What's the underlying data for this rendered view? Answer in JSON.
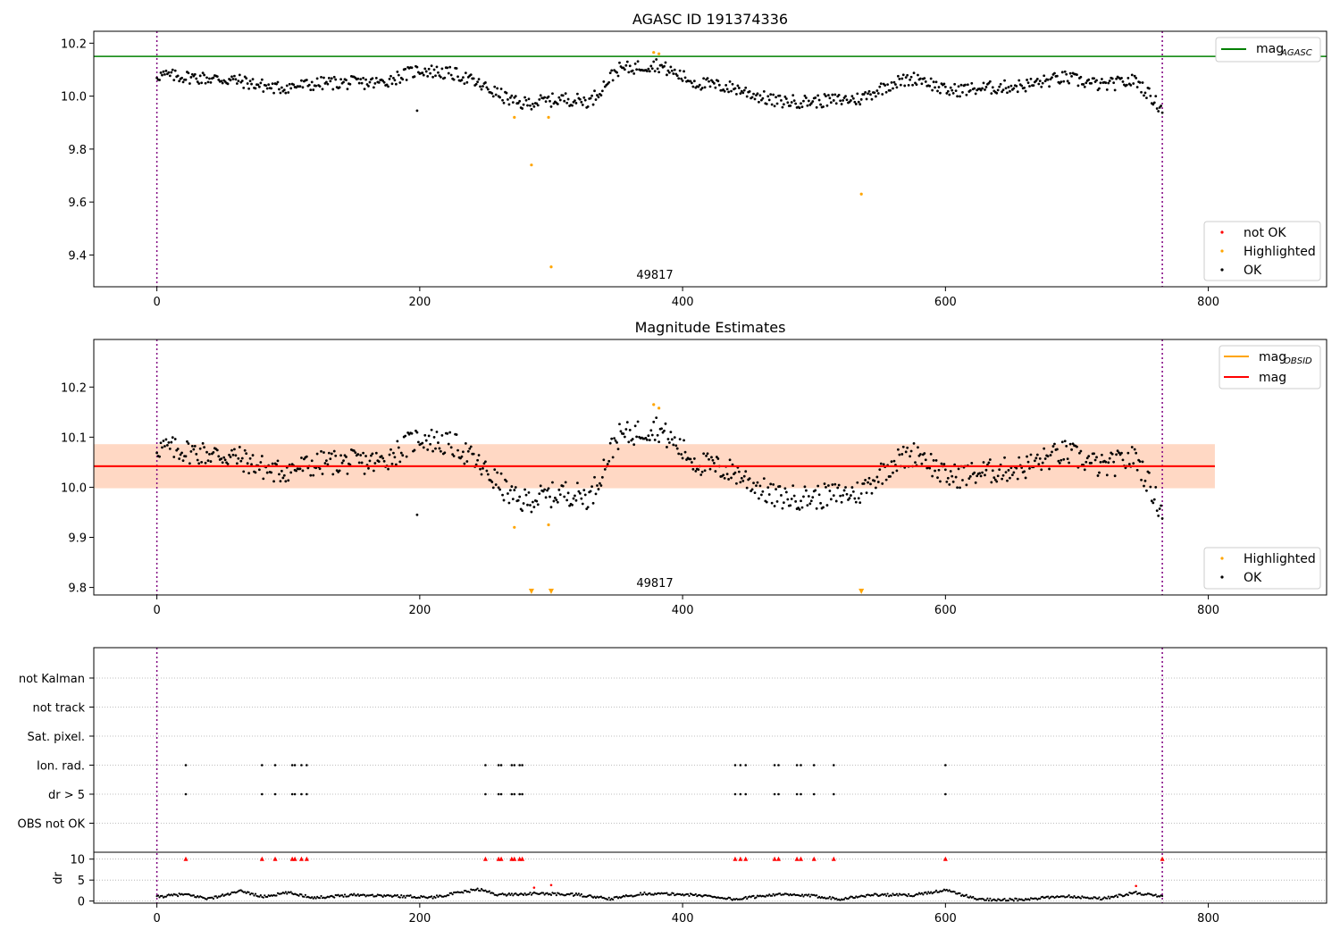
{
  "chart_data": [
    {
      "type": "scatter",
      "title": "AGASC ID 191374336",
      "xlim": [
        -48,
        890
      ],
      "ylim": [
        9.28,
        10.245
      ],
      "xticks": [
        0,
        200,
        400,
        600,
        800
      ],
      "yticks": [
        9.4,
        9.6,
        9.8,
        10.0,
        10.2
      ],
      "ytick_labels": [
        "9.4",
        "9.6",
        "9.8",
        "10.0",
        "10.2"
      ],
      "annotation": "49817",
      "annotation_x": 385,
      "obs_boundaries": [
        0,
        765
      ],
      "mag_agasc": 10.15,
      "legend_top": {
        "position": "top-right",
        "entries": [
          {
            "label": "mag",
            "sub": "AGASC",
            "color": "#008000",
            "kind": "line"
          }
        ]
      },
      "legend_bottom": {
        "position": "bottom-right",
        "entries": [
          {
            "label": "not OK",
            "color": "#ff0000",
            "kind": "dot"
          },
          {
            "label": "Highlighted",
            "color": "#ffa500",
            "kind": "dot"
          },
          {
            "label": "OK",
            "color": "#000000",
            "kind": "dot"
          }
        ]
      },
      "highlighted": [
        [
          272,
          9.92
        ],
        [
          285,
          9.74
        ],
        [
          298,
          9.92
        ],
        [
          300,
          9.355
        ],
        [
          378,
          10.165
        ],
        [
          382,
          10.16
        ],
        [
          536,
          9.63
        ]
      ],
      "ok_points_note_trend": [
        [
          0,
          10.08
        ],
        [
          30,
          10.07
        ],
        [
          60,
          10.06
        ],
        [
          90,
          10.03
        ],
        [
          130,
          10.05
        ],
        [
          170,
          10.05
        ],
        [
          200,
          10.1
        ],
        [
          230,
          10.08
        ],
        [
          255,
          10.02
        ],
        [
          275,
          9.97
        ],
        [
          310,
          9.99
        ],
        [
          330,
          9.98
        ],
        [
          350,
          10.1
        ],
        [
          380,
          10.12
        ],
        [
          410,
          10.05
        ],
        [
          440,
          10.03
        ],
        [
          470,
          9.98
        ],
        [
          500,
          9.98
        ],
        [
          535,
          9.99
        ],
        [
          560,
          10.05
        ],
        [
          580,
          10.07
        ],
        [
          600,
          10.02
        ],
        [
          630,
          10.03
        ],
        [
          660,
          10.04
        ],
        [
          690,
          10.07
        ],
        [
          720,
          10.04
        ],
        [
          745,
          10.06
        ],
        [
          765,
          9.95
        ]
      ]
    },
    {
      "type": "scatter",
      "title": "Magnitude Estimates",
      "xlim": [
        -48,
        890
      ],
      "ylim": [
        9.785,
        10.295
      ],
      "xticks": [
        0,
        200,
        400,
        600,
        800
      ],
      "yticks": [
        9.8,
        9.9,
        10.0,
        10.1,
        10.2
      ],
      "ytick_labels": [
        "9.8",
        "9.9",
        "10.0",
        "10.1",
        "10.2"
      ],
      "annotation": "49817",
      "annotation_x": 385,
      "obs_boundaries": [
        0,
        765
      ],
      "mag": 10.042,
      "mag_band": [
        9.998,
        10.086
      ],
      "mag_obsid": 10.042,
      "mag_obsid_band": [
        9.998,
        10.086
      ],
      "band_xrange": [
        -48,
        805
      ],
      "legend_top": {
        "position": "top-right",
        "entries": [
          {
            "label": "mag",
            "sub": "OBSID",
            "color": "#ffa500",
            "kind": "line"
          },
          {
            "label": "mag",
            "sub": "",
            "color": "#ff0000",
            "kind": "line"
          }
        ]
      },
      "legend_bottom": {
        "position": "bottom-right",
        "entries": [
          {
            "label": "Highlighted",
            "color": "#ffa500",
            "kind": "dot"
          },
          {
            "label": "OK",
            "color": "#000000",
            "kind": "dot"
          }
        ]
      },
      "highlighted": [
        [
          272,
          9.92
        ],
        [
          298,
          9.925
        ],
        [
          378,
          10.165
        ],
        [
          382,
          10.158
        ]
      ],
      "out_of_range_markers": [
        285,
        300,
        536
      ]
    },
    {
      "type": "scatter",
      "title": "",
      "xlim": [
        -48,
        890
      ],
      "xticks": [
        0,
        200,
        400,
        600,
        800
      ],
      "flag_labels": [
        "not Kalman",
        "not track",
        "Sat. pixel.",
        "Ion. rad.",
        "dr > 5",
        "OBS not OK"
      ],
      "obs_boundaries": [
        0,
        765
      ],
      "flag_points": {
        "Ion. rad.": [
          22,
          80,
          90,
          103,
          105,
          110,
          114,
          250,
          260,
          262,
          270,
          272,
          276,
          278,
          440,
          444,
          448,
          470,
          473,
          487,
          490,
          500,
          515,
          600
        ],
        "dr > 5": [
          22,
          80,
          90,
          103,
          105,
          110,
          114,
          250,
          260,
          262,
          270,
          272,
          276,
          278,
          440,
          444,
          448,
          470,
          473,
          487,
          490,
          500,
          515,
          600
        ]
      },
      "dr_panel": {
        "ylabel": "dr",
        "yticks": [
          0,
          5,
          10
        ],
        "ytick_labels": [
          "0",
          "5",
          "10"
        ],
        "ylim": [
          -0.5,
          11
        ],
        "clipped_markers": [
          22,
          80,
          90,
          103,
          105,
          110,
          114,
          250,
          260,
          262,
          270,
          272,
          276,
          278,
          440,
          444,
          448,
          470,
          473,
          487,
          490,
          500,
          515,
          600,
          765
        ],
        "red_points": [
          [
            287,
            3.2
          ],
          [
            300,
            3.8
          ],
          [
            745,
            3.6
          ]
        ],
        "trend": [
          [
            0,
            1.0
          ],
          [
            20,
            1.6
          ],
          [
            40,
            0.6
          ],
          [
            65,
            2.4
          ],
          [
            80,
            1.0
          ],
          [
            100,
            2.0
          ],
          [
            120,
            0.8
          ],
          [
            150,
            1.5
          ],
          [
            180,
            1.2
          ],
          [
            210,
            0.9
          ],
          [
            245,
            2.8
          ],
          [
            260,
            1.5
          ],
          [
            290,
            1.8
          ],
          [
            320,
            1.5
          ],
          [
            345,
            0.5
          ],
          [
            370,
            1.8
          ],
          [
            400,
            1.6
          ],
          [
            420,
            1.2
          ],
          [
            440,
            0.4
          ],
          [
            470,
            1.6
          ],
          [
            500,
            1.2
          ],
          [
            520,
            0.5
          ],
          [
            545,
            1.5
          ],
          [
            575,
            1.4
          ],
          [
            600,
            2.6
          ],
          [
            625,
            0.4
          ],
          [
            660,
            0.3
          ],
          [
            690,
            1.2
          ],
          [
            720,
            0.6
          ],
          [
            745,
            2.0
          ],
          [
            765,
            1.0
          ]
        ]
      }
    }
  ]
}
